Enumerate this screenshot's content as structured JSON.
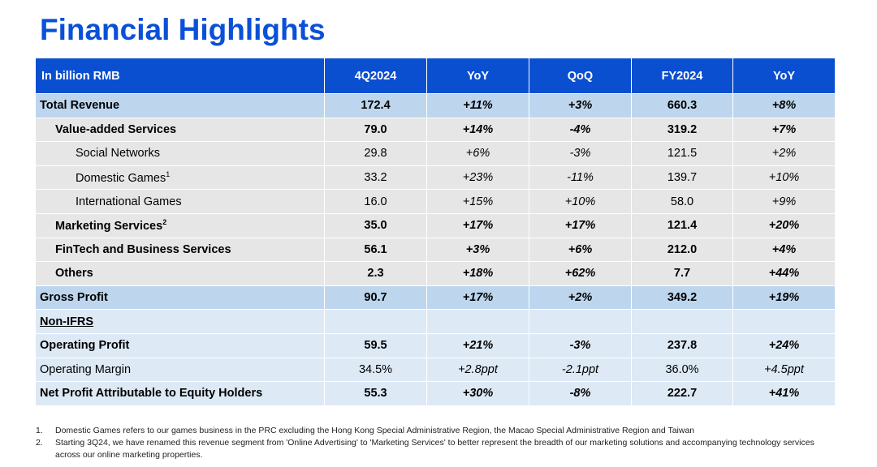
{
  "title": "Financial Highlights",
  "table": {
    "headers": [
      "In billion RMB",
      "4Q2024",
      "YoY",
      "QoQ",
      "FY2024",
      "YoY"
    ],
    "rows": [
      {
        "label": "Total Revenue",
        "sup": "",
        "values": [
          "172.4",
          "+11%",
          "+3%",
          "660.3",
          "+8%"
        ]
      },
      {
        "label": "Value-added Services",
        "sup": "",
        "values": [
          "79.0",
          "+14%",
          "-4%",
          "319.2",
          "+7%"
        ]
      },
      {
        "label": "Social Networks",
        "sup": "",
        "values": [
          "29.8",
          "+6%",
          "-3%",
          "121.5",
          "+2%"
        ]
      },
      {
        "label": "Domestic Games",
        "sup": "1",
        "values": [
          "33.2",
          "+23%",
          "-11%",
          "139.7",
          "+10%"
        ]
      },
      {
        "label": "International Games",
        "sup": "",
        "values": [
          "16.0",
          "+15%",
          "+10%",
          "58.0",
          "+9%"
        ]
      },
      {
        "label": "Marketing Services",
        "sup": "2",
        "values": [
          "35.0",
          "+17%",
          "+17%",
          "121.4",
          "+20%"
        ]
      },
      {
        "label": "FinTech and Business Services",
        "sup": "",
        "values": [
          "56.1",
          "+3%",
          "+6%",
          "212.0",
          "+4%"
        ]
      },
      {
        "label": "Others",
        "sup": "",
        "values": [
          "2.3",
          "+18%",
          "+62%",
          "7.7",
          "+44%"
        ]
      },
      {
        "label": "Gross Profit",
        "sup": "",
        "values": [
          "90.7",
          "+17%",
          "+2%",
          "349.2",
          "+19%"
        ]
      },
      {
        "label": "Non-IFRS",
        "sup": "",
        "values": []
      },
      {
        "label": "Operating Profit",
        "sup": "",
        "values": [
          "59.5",
          "+21%",
          "-3%",
          "237.8",
          "+24%"
        ]
      },
      {
        "label": "Operating Margin",
        "sup": "",
        "values": [
          "34.5%",
          "+2.8ppt",
          "-2.1ppt",
          "36.0%",
          "+4.5ppt"
        ]
      },
      {
        "label": "Net Profit Attributable to Equity Holders",
        "sup": "",
        "values": [
          "55.3",
          "+30%",
          "-8%",
          "222.7",
          "+41%"
        ]
      }
    ]
  },
  "notes": [
    {
      "num": "1.",
      "text": "Domestic Games refers to our games business in the PRC excluding the Hong Kong Special Administrative Region, the Macao Special Administrative Region and Taiwan"
    },
    {
      "num": "2.",
      "text": "Starting 3Q24, we have renamed this revenue segment from 'Online Advertising' to 'Marketing Services' to better represent the breadth of our marketing solutions and accompanying technology services across our online marketing properties."
    }
  ],
  "colors": {
    "title": "#0a50d8",
    "header_bg": "#0b4fd1",
    "highlight_row": "#bdd6ee",
    "grey_row": "#e6e6e6",
    "light_row": "#dde9f5"
  }
}
